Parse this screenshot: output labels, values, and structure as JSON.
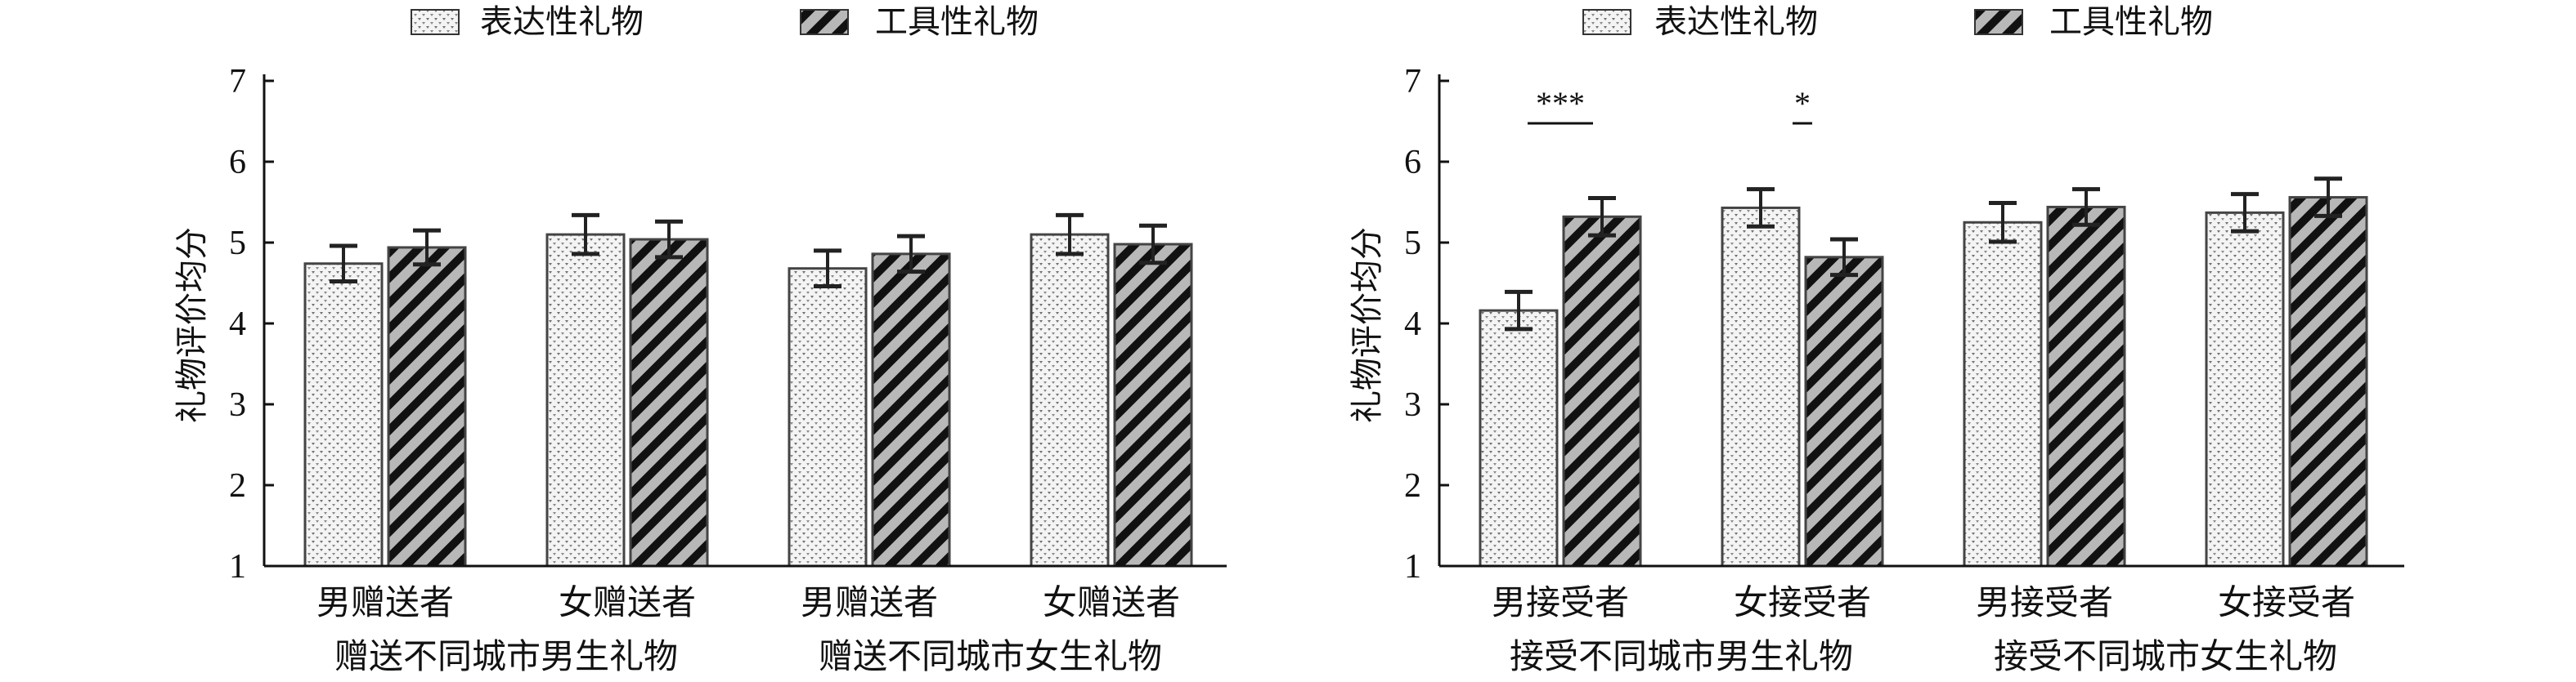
{
  "chart_data": [
    {
      "type": "bar",
      "ylabel": "礼物评价均分",
      "ylim": [
        1,
        7
      ],
      "yticks": [
        "1",
        "2",
        "3",
        "4",
        "5",
        "6",
        "7"
      ],
      "legend": {
        "placement": "top",
        "entries": [
          "表达性礼物",
          "工具性礼物"
        ]
      },
      "categories": [
        "男赠送者",
        "女赠送者",
        "男赠送者",
        "女赠送者"
      ],
      "group_labels": [
        "赠送不同城市男生礼物",
        "赠送不同城市女生礼物"
      ],
      "series": [
        {
          "name": "表达性礼物",
          "pattern": "dotted",
          "values": [
            4.74,
            5.1,
            4.68,
            5.1
          ],
          "errors": [
            0.22,
            0.24,
            0.22,
            0.24
          ]
        },
        {
          "name": "工具性礼物",
          "pattern": "diagonal-stripes",
          "values": [
            4.94,
            5.04,
            4.86,
            4.98
          ],
          "errors": [
            0.21,
            0.22,
            0.22,
            0.23
          ]
        }
      ],
      "annotations": []
    },
    {
      "type": "bar",
      "ylabel": "礼物评价均分",
      "ylim": [
        1,
        7
      ],
      "yticks": [
        "1",
        "2",
        "3",
        "4",
        "5",
        "6",
        "7"
      ],
      "legend": {
        "placement": "top",
        "entries": [
          "表达性礼物",
          "工具性礼物"
        ]
      },
      "categories": [
        "男接受者",
        "女接受者",
        "男接受者",
        "女接受者"
      ],
      "group_labels": [
        "接受不同城市男生礼物",
        "接受不同城市女生礼物"
      ],
      "series": [
        {
          "name": "表达性礼物",
          "pattern": "dotted",
          "values": [
            4.16,
            5.43,
            5.25,
            5.37
          ],
          "errors": [
            0.23,
            0.23,
            0.24,
            0.23
          ]
        },
        {
          "name": "工具性礼物",
          "pattern": "diagonal-stripes",
          "values": [
            5.32,
            4.82,
            5.44,
            5.56
          ],
          "errors": [
            0.23,
            0.22,
            0.22,
            0.23
          ]
        }
      ],
      "annotations": [
        {
          "category": 0,
          "text": "***"
        },
        {
          "category": 1,
          "text": "*"
        }
      ]
    }
  ],
  "colors": {
    "axis": "#111111",
    "dot_fill": "#f4f4f4",
    "dot_color": "#707070",
    "stripe_dark": "#111111",
    "stripe_light": "#b8b8b8"
  }
}
